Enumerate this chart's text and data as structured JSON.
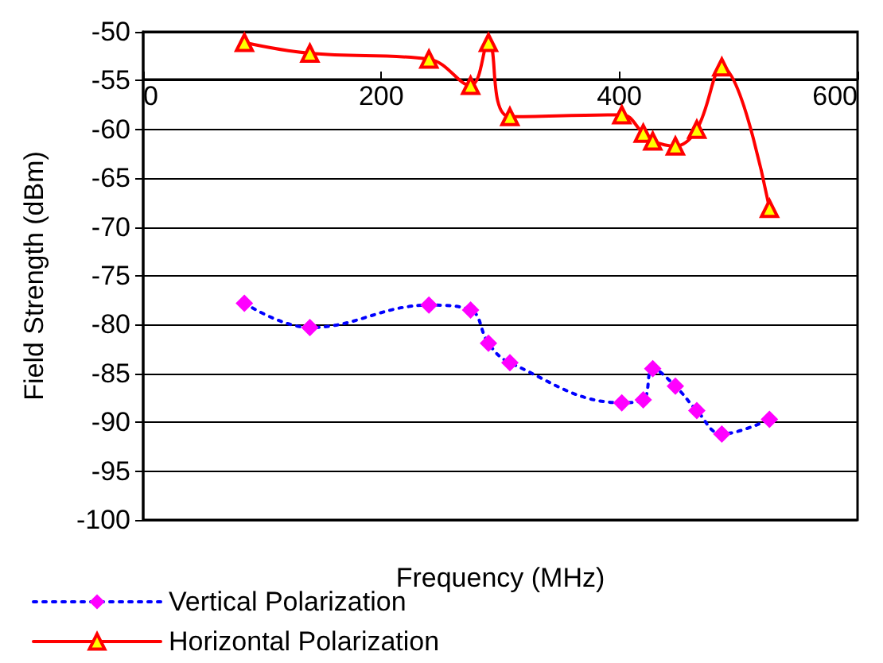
{
  "chart_data": {
    "type": "line",
    "xlabel": "Frequency (MHz)",
    "ylabel": "Field Strength (dBm)",
    "xlim": [
      0,
      600
    ],
    "xticks": [
      0,
      200,
      400,
      600
    ],
    "ylim": [
      -100,
      -50
    ],
    "yticks": [
      -100,
      -95,
      -90,
      -85,
      -80,
      -75,
      -70,
      -65,
      -60,
      -55,
      -50
    ],
    "grid": "y",
    "legend": "bottom",
    "x": [
      85,
      140,
      240,
      275,
      290,
      308,
      402,
      420,
      428,
      447,
      465,
      486,
      526
    ],
    "series": [
      {
        "name": "Vertical Polarization",
        "color": "#0000ff",
        "marker": "diamond",
        "colors": [
          "#ff00ff",
          "#ff00ff",
          "#ff00ff",
          "#ff00ff",
          "#ff00ff",
          "#ff00ff",
          "#ff00ff",
          "#ff00ff",
          "#ff00ff",
          "#ff00ff",
          "#ff00ff",
          "#ff00ff",
          "#ff00ff"
        ],
        "line_style": "dotted",
        "values": [
          -77.8,
          -80.3,
          -78.0,
          -78.5,
          -81.9,
          -83.9,
          -88.0,
          -87.7,
          -84.5,
          -86.3,
          -88.8,
          -91.2,
          -89.7
        ]
      },
      {
        "name": "Horizontal Polarization",
        "color": "#ff0000",
        "marker": "triangle",
        "colors": [
          "#ffff00",
          "#ffff00",
          "#ffff00",
          "#ffff00",
          "#ffff00",
          "#ffff00",
          "#ffff00",
          "#ffff00",
          "#ffff00",
          "#ffff00",
          "#ffff00",
          "#ffff00",
          "#ffff00"
        ],
        "line_style": "solid",
        "values": [
          -51.1,
          -52.2,
          -52.8,
          -55.5,
          -51.1,
          -58.7,
          -58.5,
          -60.4,
          -61.2,
          -61.7,
          -60.0,
          -53.6,
          -68.1
        ]
      }
    ]
  }
}
